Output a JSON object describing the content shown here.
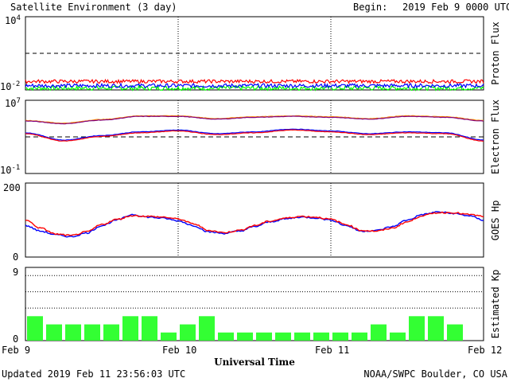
{
  "header": {
    "title": "Satellite Environment (3 day)",
    "begin_label": "Begin:",
    "begin_value": "2019 Feb 9 0000 UTC"
  },
  "footer": {
    "updated": "Updated 2019 Feb 11 23:56:03 UTC",
    "credit": "NOAA/SWPC Boulder, CO USA"
  },
  "chart_data": [
    {
      "type": "line",
      "name": "proton-flux",
      "ylabel": "Proton Flux",
      "yscale": "log",
      "ylim_exp": [
        -2,
        4
      ],
      "ytick_labels": [
        "10",
        "10"
      ],
      "ytick_exps": [
        "4",
        "-2"
      ],
      "threshold_exp": 1,
      "x_days": [
        0,
        3
      ],
      "colors": {
        "high": "#ff0000",
        "mid": "#0000ff",
        "low": "#00ff00",
        "threshold": "#000000"
      },
      "series_levels_exp": {
        "high": -1.3,
        "mid": -1.65,
        "low": -1.85
      }
    },
    {
      "type": "line",
      "name": "electron-flux",
      "ylabel": "Electron Flux",
      "yscale": "log",
      "ylim_exp": [
        -1,
        7
      ],
      "ytick_labels": [
        "10",
        "10"
      ],
      "ytick_exps": [
        "7",
        "-1"
      ],
      "threshold_exp": 3,
      "colors": {
        "gt2mev_a": "#ff0000",
        "gt2mev_b": "#0000ff",
        "gt08mev_a": "#ff8c00",
        "gt08mev_b": "#800080",
        "threshold": "#000000"
      },
      "x": [
        0,
        0.25,
        0.5,
        0.75,
        1.0,
        1.25,
        1.5,
        1.75,
        2.0,
        2.25,
        2.5,
        2.75,
        3.0
      ],
      "series": [
        {
          "key": "gt08mev",
          "values_exp": [
            4.8,
            4.5,
            4.9,
            5.3,
            5.3,
            5.0,
            5.2,
            5.3,
            5.2,
            5.0,
            5.3,
            5.2,
            4.8
          ]
        },
        {
          "key": "gt2mev",
          "values_exp": [
            3.4,
            2.6,
            3.1,
            3.5,
            3.7,
            3.3,
            3.5,
            3.8,
            3.6,
            3.3,
            3.5,
            3.4,
            2.6
          ]
        }
      ]
    },
    {
      "type": "line",
      "name": "goes-hp",
      "ylabel": "GOES Hp",
      "ylim": [
        0,
        200
      ],
      "ytick_labels": [
        "200",
        "0"
      ],
      "colors": {
        "a": "#0000ff",
        "b": "#ff0000"
      },
      "x": [
        0,
        0.1,
        0.2,
        0.3,
        0.4,
        0.5,
        0.6,
        0.7,
        0.8,
        0.9,
        1.0,
        1.1,
        1.2,
        1.3,
        1.4,
        1.5,
        1.6,
        1.7,
        1.8,
        1.9,
        2.0,
        2.1,
        2.2,
        2.3,
        2.4,
        2.5,
        2.6,
        2.7,
        2.8,
        2.9,
        3.0
      ],
      "series": [
        {
          "key": "a",
          "values": [
            85,
            70,
            60,
            55,
            65,
            85,
            100,
            115,
            108,
            105,
            98,
            85,
            68,
            64,
            70,
            82,
            95,
            103,
            108,
            106,
            100,
            85,
            70,
            72,
            82,
            100,
            115,
            122,
            118,
            112,
            100
          ]
        },
        {
          "key": "b",
          "values": [
            100,
            78,
            62,
            58,
            68,
            88,
            102,
            112,
            110,
            108,
            103,
            90,
            72,
            66,
            72,
            85,
            97,
            105,
            110,
            108,
            102,
            88,
            72,
            70,
            78,
            95,
            112,
            120,
            120,
            115,
            110
          ]
        }
      ]
    },
    {
      "type": "bar",
      "name": "estimated-kp",
      "ylabel": "Estimated Kp",
      "ylim": [
        0,
        9
      ],
      "ytick_labels": [
        "9",
        "0"
      ],
      "bar_color": "#33ff33",
      "gridlines": [
        4,
        6,
        8
      ],
      "values": [
        3,
        2,
        2,
        2,
        2,
        3,
        3,
        1,
        2,
        3,
        1,
        1,
        1,
        1,
        1,
        1,
        1,
        1,
        2,
        1,
        3,
        3,
        2
      ]
    }
  ],
  "x_axis": {
    "label": "Universal Time",
    "ticks": [
      "Feb 9",
      "Feb 10",
      "Feb 11",
      "Feb 12"
    ]
  }
}
